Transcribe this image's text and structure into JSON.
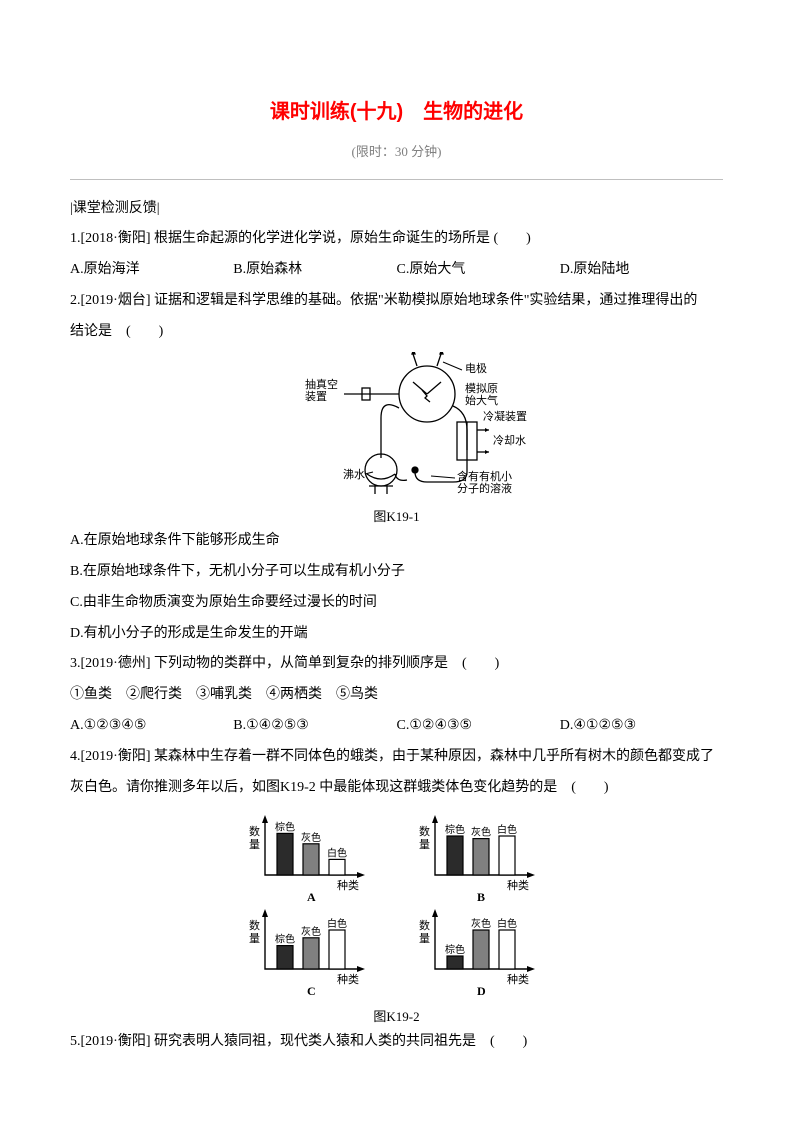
{
  "title": "课时训练(十九)　生物的进化",
  "subtitle": "(限时：30 分钟)",
  "section_label": "|课堂检测反馈|",
  "q1": {
    "stem": "1.[2018·衡阳] 根据生命起源的化学进化学说，原始生命诞生的场所是 (　　)",
    "opts": {
      "A": "A.原始海洋",
      "B": "B.原始森林",
      "C": "C.原始大气",
      "D": "D.原始陆地"
    }
  },
  "q2": {
    "stem_a": "2.[2019·烟台] 证据和逻辑是科学思维的基础。依据\"米勒模拟原始地球条件\"实验结果，通过推理得出的",
    "stem_b": "结论是　(　　)",
    "fig_caption": "图K19-1",
    "labels": {
      "vacuum": "抽真空\n装置",
      "electrode": "电极",
      "simgas": "模拟原\n始大气",
      "condenser": "冷凝装置",
      "coolant": "冷却水",
      "boil": "沸水",
      "solution": "含有有机小\n分子的溶液"
    },
    "optA": "A.在原始地球条件下能够形成生命",
    "optB": "B.在原始地球条件下，无机小分子可以生成有机小分子",
    "optC": "C.由非生命物质演变为原始生命要经过漫长的时间",
    "optD": "D.有机小分子的形成是生命发生的开端"
  },
  "q3": {
    "stem": "3.[2019·德州] 下列动物的类群中，从简单到复杂的排列顺序是　(　　)",
    "list": "①鱼类　②爬行类　③哺乳类　④两栖类　⑤鸟类",
    "opts": {
      "A": "A.①②③④⑤",
      "B": "B.①④②⑤③",
      "C": "C.①②④③⑤",
      "D": "D.④①②⑤③"
    }
  },
  "q4": {
    "stem_a": "4.[2019·衡阳] 某森林中生存着一群不同体色的蛾类，由于某种原因，森林中几乎所有树木的颜色都变成了",
    "stem_b": "灰白色。请你推测多年以后，如图K19-2 中最能体现这群蛾类体色变化趋势的是　(　　)",
    "fig_caption": "图K19-2",
    "axis_y": "数量",
    "axis_x": "种类",
    "cats": {
      "brown": "棕色",
      "gray": "灰色",
      "white": "白色"
    },
    "panels": {
      "A": {
        "label": "A",
        "vals": [
          32,
          24,
          12
        ]
      },
      "B": {
        "label": "B",
        "vals": [
          30,
          28,
          30
        ]
      },
      "C": {
        "label": "C",
        "vals": [
          18,
          24,
          30
        ]
      },
      "D": {
        "label": "D",
        "vals": [
          10,
          30,
          30
        ]
      }
    },
    "colors": {
      "brown": "#2b2b2b",
      "gray": "#808080",
      "white": "#ffffff",
      "stroke": "#000000"
    }
  },
  "q5": {
    "stem": "5.[2019·衡阳] 研究表明人猿同祖，现代类人猿和人类的共同祖先是　(　　)"
  }
}
